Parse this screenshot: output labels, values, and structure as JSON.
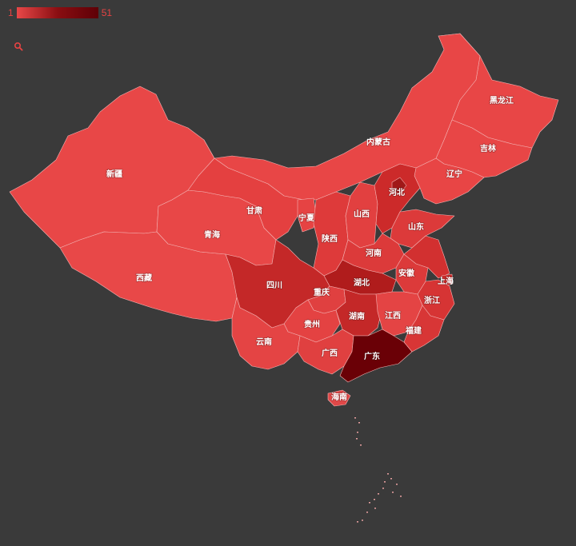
{
  "legend": {
    "min_label": "1",
    "max_label": "51",
    "low_color": "#e84848",
    "high_color": "#5e0006"
  },
  "toolbar": {
    "zoom_icon": "magnifier-icon"
  },
  "colors": {
    "background": "#3a3a3a",
    "border": "#f3b3b3",
    "label": "#ffffff"
  },
  "provinces": [
    {
      "id": "heilongjiang",
      "name": "黑龙江",
      "color": "#e84646"
    },
    {
      "id": "jilin",
      "name": "吉林",
      "color": "#e84646"
    },
    {
      "id": "liaoning",
      "name": "辽宁",
      "color": "#e84545"
    },
    {
      "id": "neimenggu",
      "name": "内蒙古",
      "color": "#e84646"
    },
    {
      "id": "xinjiang",
      "name": "新疆",
      "color": "#e84747"
    },
    {
      "id": "xizang",
      "name": "西藏",
      "color": "#e84848"
    },
    {
      "id": "qinghai",
      "name": "青海",
      "color": "#e84747"
    },
    {
      "id": "gansu",
      "name": "甘肃",
      "color": "#e44040"
    },
    {
      "id": "ningxia",
      "name": "宁夏",
      "color": "#e64343"
    },
    {
      "id": "shaanxi",
      "name": "陕西",
      "color": "#de3a3a"
    },
    {
      "id": "shanxi",
      "name": "山西",
      "color": "#e24040"
    },
    {
      "id": "hebei",
      "name": "河北",
      "color": "#cc2a2a"
    },
    {
      "id": "beijing",
      "name": "",
      "color": "#a01818"
    },
    {
      "id": "shandong",
      "name": "山东",
      "color": "#dc3a3a"
    },
    {
      "id": "henan",
      "name": "河南",
      "color": "#dc3a3a"
    },
    {
      "id": "jiangsu",
      "name": "",
      "color": "#d23030"
    },
    {
      "id": "anhui",
      "name": "安徽",
      "color": "#dc3a3a"
    },
    {
      "id": "shanghai",
      "name": "上海",
      "color": "#c82828"
    },
    {
      "id": "zhejiang",
      "name": "浙江",
      "color": "#d63434"
    },
    {
      "id": "hubei",
      "name": "湖北",
      "color": "#b01c1c"
    },
    {
      "id": "sichuan",
      "name": "四川",
      "color": "#c42828"
    },
    {
      "id": "chongqing",
      "name": "重庆",
      "color": "#e04040"
    },
    {
      "id": "guizhou",
      "name": "贵州",
      "color": "#e44242"
    },
    {
      "id": "hunan",
      "name": "湖南",
      "color": "#c42828"
    },
    {
      "id": "jiangxi",
      "name": "江西",
      "color": "#e44444"
    },
    {
      "id": "fujian",
      "name": "福建",
      "color": "#d83636"
    },
    {
      "id": "yunnan",
      "name": "云南",
      "color": "#e44444"
    },
    {
      "id": "guangxi",
      "name": "广西",
      "color": "#e04040"
    },
    {
      "id": "guangdong",
      "name": "广东",
      "color": "#6a0006"
    },
    {
      "id": "hainan",
      "name": "海南",
      "color": "#e04848"
    }
  ]
}
